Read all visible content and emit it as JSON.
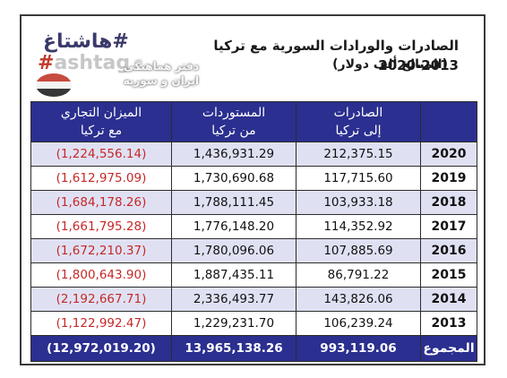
{
  "logo": {
    "top_text": "هاشتاغ#",
    "bottom_hash": "#",
    "bottom_text": "ashtag"
  },
  "watermark": {
    "line1": "دفتر هماهنگی",
    "line2": "ایران و سوریه"
  },
  "title": "الصادرات والورادات السورية مع تركيا 2013-2020",
  "subtitle": "(المبالغ ألف دولار)",
  "table": {
    "headers": {
      "year": "",
      "exports": [
        "الصادرات",
        "إلى تركيا"
      ],
      "imports": [
        "المستوردات",
        "من تركيا"
      ],
      "balance": [
        "الميزان  التجاري",
        "مع تركيا"
      ]
    },
    "rows": [
      {
        "year": "2020",
        "exports": "212,375.15",
        "imports": "1,436,931.29",
        "balance": "(1,224,556.14)"
      },
      {
        "year": "2019",
        "exports": "117,715.60",
        "imports": "1,730,690.68",
        "balance": "(1,612,975.09)"
      },
      {
        "year": "2018",
        "exports": "103,933.18",
        "imports": "1,788,111.45",
        "balance": "(1,684,178.26)"
      },
      {
        "year": "2017",
        "exports": "114,352.92",
        "imports": "1,776,148.20",
        "balance": "(1,661,795.28)"
      },
      {
        "year": "2016",
        "exports": "107,885.69",
        "imports": "1,780,096.06",
        "balance": "(1,672,210.37)"
      },
      {
        "year": "2015",
        "exports": "86,791.22",
        "imports": "1,887,435.11",
        "balance": "(1,800,643.90)"
      },
      {
        "year": "2014",
        "exports": "143,826.06",
        "imports": "2,336,493.77",
        "balance": "(2,192,667.71)"
      },
      {
        "year": "2013",
        "exports": "106,239.24",
        "imports": "1,229,231.70",
        "balance": "(1,122,992.47)"
      }
    ],
    "total": {
      "label": "المجموع",
      "exports": "993,119.06",
      "imports": "13,965,138.26",
      "balance": "(12,972,019.20)"
    }
  },
  "colors": {
    "header_bg": "#2b2f8f",
    "row_alt_bg": "#dfe1f3",
    "negative_text": "#c62828"
  }
}
